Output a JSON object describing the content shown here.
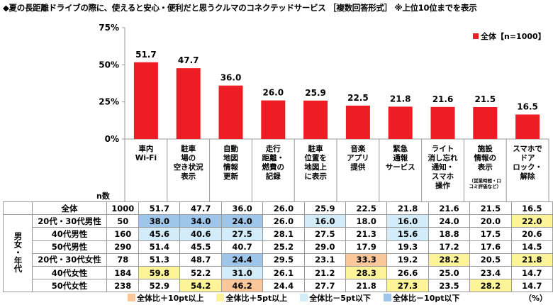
{
  "title": "◆夏の長距離ドライブの際に、使えると安心・便利だと思うクルマのコネクテッドサービス ［複数回答形式］ ※上位10位までを表示",
  "chart_data": {
    "type": "bar",
    "categories": [
      [
        "車内",
        "Wi-Fi"
      ],
      [
        "駐車",
        "場の",
        "空き状況",
        "表示"
      ],
      [
        "自動",
        "地図",
        "情報",
        "更新"
      ],
      [
        "走行",
        "距離・",
        "燃費の",
        "記録"
      ],
      [
        "駐車",
        "位置を",
        "地図上",
        "に表示"
      ],
      [
        "音楽",
        "アプリ",
        "提供"
      ],
      [
        "緊急",
        "通報",
        "サービス"
      ],
      [
        "ライト",
        "消し忘れ",
        "通知・",
        "スマホ",
        "操作"
      ],
      [
        "施設",
        "情報の",
        "表示"
      ],
      [
        "スマホで",
        "ドア",
        "ロック・",
        "解除"
      ]
    ],
    "category_notes": [
      "",
      "",
      "",
      "",
      "",
      "",
      "",
      "",
      "（営業時間・口コミ評価など）",
      ""
    ],
    "series": [
      {
        "name": "全体【n=1000】",
        "values": [
          51.7,
          47.7,
          36.0,
          26.0,
          25.9,
          22.5,
          21.8,
          21.6,
          21.5,
          16.5
        ],
        "color": "#ee1c25"
      }
    ],
    "value_labels": [
      "51.7",
      "47.7",
      "36.0",
      "26.0",
      "25.9",
      "22.5",
      "21.8",
      "21.6",
      "21.5",
      "16.5"
    ],
    "yticks": [
      "0%",
      "25%",
      "50%",
      "75%"
    ],
    "ylim": [
      0,
      75
    ],
    "legend_position": "top-right",
    "grid": false
  },
  "table": {
    "n_header": "n数",
    "group_label": "男女・年代",
    "rows": [
      {
        "label": "全体",
        "n": "1000",
        "values": [
          "51.7",
          "47.7",
          "36.0",
          "26.0",
          "25.9",
          "22.5",
          "21.8",
          "21.6",
          "21.5",
          "16.5"
        ],
        "levels": [
          0,
          0,
          0,
          0,
          0,
          0,
          0,
          0,
          0,
          0
        ]
      },
      {
        "label": "20代・30代男性",
        "n": "50",
        "values": [
          "38.0",
          "34.0",
          "24.0",
          "26.0",
          "16.0",
          "18.0",
          "16.0",
          "24.0",
          "20.0",
          "22.0"
        ],
        "levels": [
          -2,
          -2,
          -2,
          0,
          -1,
          0,
          -1,
          0,
          0,
          1
        ]
      },
      {
        "label": "40代男性",
        "n": "160",
        "values": [
          "45.6",
          "40.6",
          "27.5",
          "28.1",
          "27.5",
          "21.3",
          "15.6",
          "18.8",
          "17.5",
          "20.6"
        ],
        "levels": [
          -1,
          -1,
          -1,
          0,
          0,
          0,
          -1,
          0,
          0,
          0
        ]
      },
      {
        "label": "50代男性",
        "n": "290",
        "values": [
          "51.4",
          "45.5",
          "40.7",
          "25.2",
          "29.0",
          "17.9",
          "19.3",
          "17.2",
          "17.6",
          "14.5"
        ],
        "levels": [
          0,
          0,
          0,
          0,
          0,
          0,
          0,
          0,
          0,
          0
        ]
      },
      {
        "label": "20代・30代女性",
        "n": "78",
        "values": [
          "51.3",
          "48.7",
          "24.4",
          "29.5",
          "23.1",
          "33.3",
          "19.2",
          "28.2",
          "20.5",
          "21.8"
        ],
        "levels": [
          0,
          0,
          -2,
          0,
          0,
          2,
          0,
          1,
          0,
          1
        ]
      },
      {
        "label": "40代女性",
        "n": "184",
        "values": [
          "59.8",
          "52.2",
          "31.0",
          "26.1",
          "21.2",
          "28.3",
          "26.6",
          "25.0",
          "23.4",
          "14.7"
        ],
        "levels": [
          1,
          0,
          -1,
          0,
          0,
          1,
          0,
          0,
          0,
          0
        ]
      },
      {
        "label": "50代女性",
        "n": "238",
        "values": [
          "52.9",
          "54.2",
          "46.2",
          "24.4",
          "27.7",
          "21.8",
          "27.3",
          "23.5",
          "28.2",
          "14.7"
        ],
        "levels": [
          0,
          1,
          2,
          0,
          0,
          0,
          1,
          0,
          1,
          0
        ]
      }
    ]
  },
  "legend_foot": [
    {
      "label": "全体比＋10pt以上",
      "color": "#f9c79a"
    },
    {
      "label": "全体比＋5pt以上",
      "color": "#fdf49a"
    },
    {
      "label": "全体比－5pt以下",
      "color": "#d3ecf9"
    },
    {
      "label": "全体比－10pt以下",
      "color": "#9dc6ea"
    }
  ],
  "unit": "（%）",
  "colors": {
    "bar": "#ee1c25",
    "axis": "#999999"
  }
}
